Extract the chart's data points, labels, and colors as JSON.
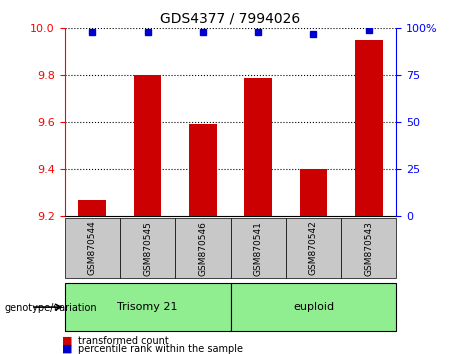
{
  "title": "GDS4377 / 7994026",
  "samples": [
    "GSM870544",
    "GSM870545",
    "GSM870546",
    "GSM870541",
    "GSM870542",
    "GSM870543"
  ],
  "bar_values": [
    9.27,
    9.8,
    9.59,
    9.79,
    9.4,
    9.95
  ],
  "percentile_values": [
    98,
    98,
    98,
    98,
    97,
    99
  ],
  "bar_color": "#cc0000",
  "dot_color": "#0000cc",
  "ylim_left": [
    9.2,
    10.0
  ],
  "ylim_right": [
    0,
    100
  ],
  "yticks_left": [
    9.2,
    9.4,
    9.6,
    9.8,
    10.0
  ],
  "yticks_right": [
    0,
    25,
    50,
    75,
    100
  ],
  "ytick_labels_right": [
    "0",
    "25",
    "50",
    "75",
    "100%"
  ],
  "grid_lines": [
    9.4,
    9.6,
    9.8
  ],
  "group1_indices": [
    0,
    1,
    2
  ],
  "group1_label": "Trisomy 21",
  "group2_indices": [
    3,
    4,
    5
  ],
  "group2_label": "euploid",
  "group_color": "#90ee90",
  "genotype_label": "genotype/variation",
  "legend_bar_label": "transformed count",
  "legend_dot_label": "percentile rank within the sample",
  "tick_area_color": "#c8c8c8"
}
